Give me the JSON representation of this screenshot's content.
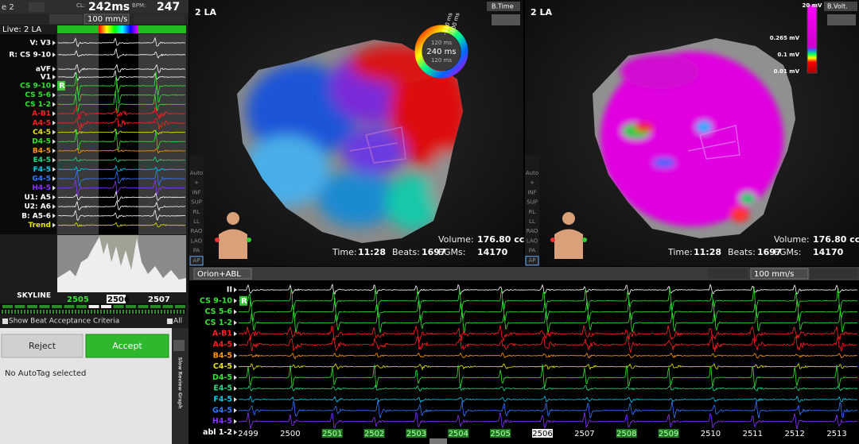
{
  "toolbar": {
    "tab": "e 2",
    "cl_label": "CL:",
    "cl": "242ms",
    "bpm_label": "BPM:",
    "bpm": "247",
    "speed": "100 mm/s"
  },
  "left": {
    "live": "Live: 2 LA",
    "badge": "R",
    "channels": [
      {
        "name": "V: V3",
        "color": "#ffffff"
      },
      {
        "name": "R: CS 9-10",
        "color": "#ffffff"
      },
      {
        "name": "aVF",
        "color": "#ffffff"
      },
      {
        "name": "V1",
        "color": "#ffffff"
      },
      {
        "name": "CS 9-10",
        "color": "#33e633"
      },
      {
        "name": "CS 5-6",
        "color": "#33e633"
      },
      {
        "name": "CS 1-2",
        "color": "#33e633"
      },
      {
        "name": "A-B1",
        "color": "#ff2020"
      },
      {
        "name": "A4-5",
        "color": "#ff2020"
      },
      {
        "name": "C4-5",
        "color": "#e6e600"
      },
      {
        "name": "D4-5",
        "color": "#33e633"
      },
      {
        "name": "B4-5",
        "color": "#ff9900"
      },
      {
        "name": "E4-5",
        "color": "#22dd88"
      },
      {
        "name": "F4-5",
        "color": "#00ccee"
      },
      {
        "name": "G4-5",
        "color": "#3377ff"
      },
      {
        "name": "H4-5",
        "color": "#8833ff"
      },
      {
        "name": "U1: A5",
        "color": "#ffffff"
      },
      {
        "name": "U2: A6",
        "color": "#ffffff"
      },
      {
        "name": "B: A5-6",
        "color": "#ffffff"
      },
      {
        "name": "Trend",
        "color": "#e6e600"
      }
    ],
    "skyline": "SKYLINE",
    "beats": [
      {
        "label": "2505",
        "bg": "#1a1a1a",
        "color": "#33e633"
      },
      {
        "label": "2506",
        "bg": "#f2f2f2",
        "color": "#000000"
      },
      {
        "label": "2507",
        "bg": "#1a1a1a",
        "color": "#ffffff"
      }
    ],
    "show_criteria": "Show Beat Acceptance Criteria",
    "all": "All",
    "reject": "Reject",
    "accept": "Accept",
    "autotag": "No AutoTag selected",
    "side_label": "Slow Review Graph"
  },
  "views": [
    "Auto",
    "+",
    "INF",
    "SUP",
    "RL",
    "LL",
    "RAO",
    "LAO",
    "PA",
    "AP"
  ],
  "maps": [
    {
      "title": "2 LA",
      "mode": "B.Time",
      "legend": {
        "center": "240 ms",
        "top": "120 ms",
        "bottom": "120 ms",
        "edge": [
          "-110 ms",
          "-100 ms"
        ]
      },
      "volume_label": "Volume:",
      "volume": "176.80 cc",
      "time_label": "Time:",
      "time": "11:28",
      "beats_label": "Beats:",
      "beats": "1697",
      "egms_label": "EGMs:",
      "egms": "14170"
    },
    {
      "title": "2 LA",
      "mode": "B.Volt.",
      "legend": {
        "scale": [
          "20 mV",
          "0.265 mV",
          "0.1 mV",
          "0.01 mV"
        ]
      },
      "volume_label": "Volume:",
      "volume": "176.80 cc",
      "time_label": "Time:",
      "time": "11:28",
      "beats_label": "Beats:",
      "beats": "1697",
      "egms_label": "EGMs:",
      "egms": "14170"
    }
  ],
  "bottom": {
    "source": "Orion+ABL",
    "speed": "100 mm/s",
    "badge": "R",
    "channels": [
      {
        "name": "II",
        "color": "#ffffff"
      },
      {
        "name": "CS 9-10",
        "color": "#33e633"
      },
      {
        "name": "CS 5-6",
        "color": "#33e633"
      },
      {
        "name": "CS 1-2",
        "color": "#33e633"
      },
      {
        "name": "A-B1",
        "color": "#ff2020"
      },
      {
        "name": "A4-5",
        "color": "#ff2020"
      },
      {
        "name": "B4-5",
        "color": "#ff9900"
      },
      {
        "name": "C4-5",
        "color": "#e6e600"
      },
      {
        "name": "D4-5",
        "color": "#33e633"
      },
      {
        "name": "E4-5",
        "color": "#22dd88"
      },
      {
        "name": "F4-5",
        "color": "#00ccee"
      },
      {
        "name": "G4-5",
        "color": "#3377ff"
      },
      {
        "name": "H4-5",
        "color": "#8833ff"
      },
      {
        "name": "abl 1-2",
        "color": "#ffffff"
      }
    ],
    "beats": [
      {
        "label": "2499",
        "bg": "none",
        "color": "#ffffff"
      },
      {
        "label": "2500",
        "bg": "none",
        "color": "#ffffff"
      },
      {
        "label": "2501",
        "bg": "#1f7a1f",
        "color": "#b8ffb8"
      },
      {
        "label": "2502",
        "bg": "#1f7a1f",
        "color": "#b8ffb8"
      },
      {
        "label": "2503",
        "bg": "#1f7a1f",
        "color": "#b8ffb8"
      },
      {
        "label": "2504",
        "bg": "#1f7a1f",
        "color": "#b8ffb8"
      },
      {
        "label": "2505",
        "bg": "#1f7a1f",
        "color": "#b8ffb8"
      },
      {
        "label": "2506",
        "bg": "#f2f2f2",
        "color": "#000000"
      },
      {
        "label": "2507",
        "bg": "none",
        "color": "#ffffff"
      },
      {
        "label": "2508",
        "bg": "#1f7a1f",
        "color": "#b8ffb8"
      },
      {
        "label": "2509",
        "bg": "#1f7a1f",
        "color": "#b8ffb8"
      },
      {
        "label": "2510",
        "bg": "none",
        "color": "#ffffff"
      },
      {
        "label": "2511",
        "bg": "none",
        "color": "#ffffff"
      },
      {
        "label": "2512",
        "bg": "none",
        "color": "#ffffff"
      },
      {
        "label": "2513",
        "bg": "none",
        "color": "#ffffff"
      }
    ]
  }
}
